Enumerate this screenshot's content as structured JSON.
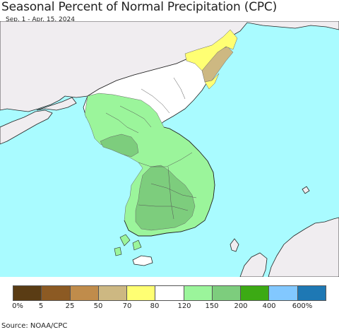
{
  "header": {
    "title": "Seasonal Percent of Normal Precipitation (CPC)",
    "subtitle": "Sep. 1 - Apr. 15, 2024"
  },
  "legend": {
    "colors": [
      "#5a3c14",
      "#8c5a23",
      "#c08c4b",
      "#cdb882",
      "#ffff73",
      "#ffffff",
      "#9bf59b",
      "#7dcd7d",
      "#3caa14",
      "#82c8ff",
      "#1e78b4"
    ],
    "ticks": [
      "0%",
      "5",
      "25",
      "50",
      "70",
      "80",
      "120",
      "150",
      "200",
      "400",
      "600%"
    ]
  },
  "footer": {
    "source": "Source: NOAA/CPC"
  },
  "map_colors": {
    "ocean": "#a9fbff",
    "neighbor_land": "#f0edf0",
    "near_normal": "#ffffff",
    "wet_150": "#9bf59b",
    "wet_200": "#7dcd7d",
    "dry_50": "#cdb882",
    "dry_70": "#ffff73"
  }
}
